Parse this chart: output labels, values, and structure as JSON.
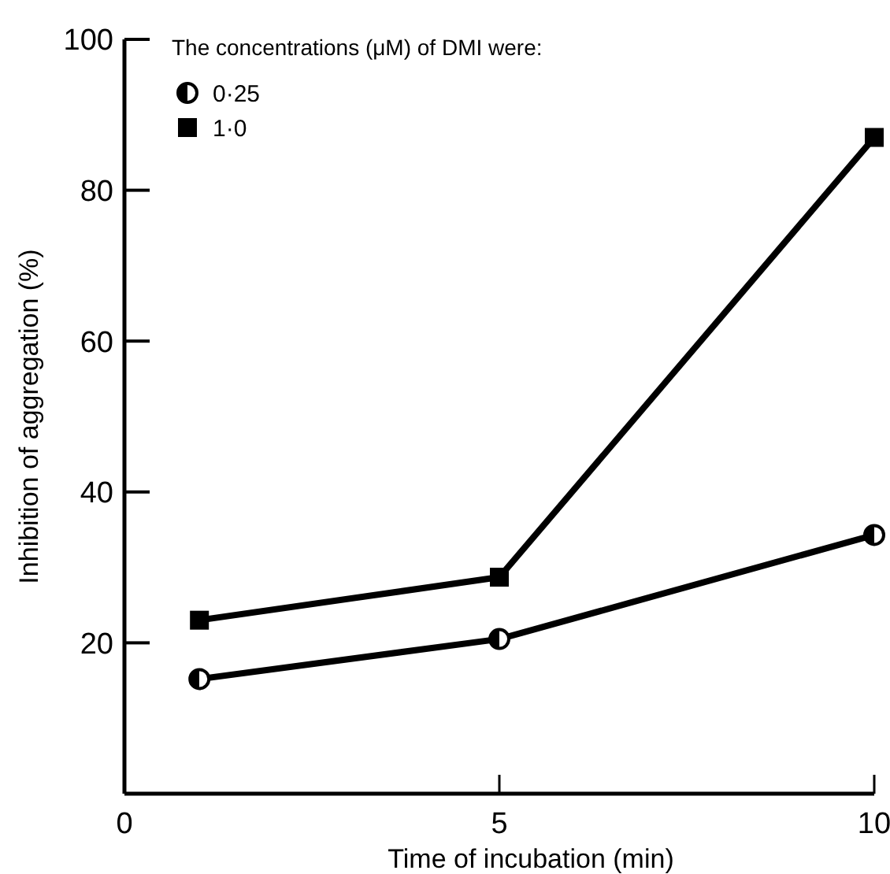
{
  "chart_data": {
    "type": "line",
    "xlabel": "Time of incubation (min)",
    "ylabel": "Inhibition of aggregation (%)",
    "legend_title": "The concentrations (μM) of DMI were:",
    "legend": "top left",
    "x": [
      1,
      5,
      10
    ],
    "xlim": [
      0,
      10
    ],
    "xticks": [
      0,
      5,
      10
    ],
    "ylim": [
      0,
      100
    ],
    "yticks": [
      20,
      40,
      60,
      80,
      100
    ],
    "grid": false,
    "line_style": "solid",
    "series": [
      {
        "name": "0·25",
        "color": "#000000",
        "marker": "circle",
        "values": [
          15.2,
          20.5,
          34.3
        ]
      },
      {
        "name": "1·0",
        "color": "#000000",
        "marker": "square",
        "values": [
          23,
          28.7,
          87
        ]
      }
    ]
  }
}
